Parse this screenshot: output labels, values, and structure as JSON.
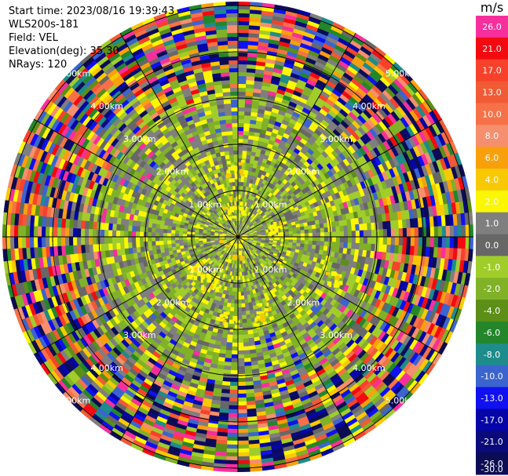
{
  "header": {
    "start_time": "Start time: 2023/08/16 19:39:43",
    "instrument": "WLS200s-181",
    "field": "Field: VEL",
    "elevation": "Elevation(deg): 35.30",
    "nrays": "NRays: 120"
  },
  "colorbar": {
    "unit": "m/s",
    "levels": [
      {
        "label": "26.0",
        "color": "#f72f9c"
      },
      {
        "label": "21.0",
        "color": "#f30a10"
      },
      {
        "label": "17.0",
        "color": "#f8412b"
      },
      {
        "label": "13.0",
        "color": "#f05a35"
      },
      {
        "label": "10.0",
        "color": "#f77148"
      },
      {
        "label": "8.0",
        "color": "#f58f6e"
      },
      {
        "label": "6.0",
        "color": "#f8a00c"
      },
      {
        "label": "4.0",
        "color": "#f8c902"
      },
      {
        "label": "2.0",
        "color": "#fbf603"
      },
      {
        "label": "1.0",
        "color": "#7f7f7f"
      },
      {
        "label": "0.0",
        "color": "#676767"
      },
      {
        "label": "-1.0",
        "color": "#a1cd2b"
      },
      {
        "label": "-2.0",
        "color": "#80b127"
      },
      {
        "label": "-4.0",
        "color": "#5c8f17"
      },
      {
        "label": "-6.0",
        "color": "#23862a"
      },
      {
        "label": "-8.0",
        "color": "#1d8c8b"
      },
      {
        "label": "-10.0",
        "color": "#3b64cf"
      },
      {
        "label": "-13.0",
        "color": "#1010f0"
      },
      {
        "label": "-17.0",
        "color": "#0505a8"
      },
      {
        "label": "-21.0",
        "color": "#0a0a7a"
      },
      {
        "label": "-26.0",
        "color": "#0c0c55"
      },
      {
        "label": "-30.0",
        "color": "#0c0c55"
      }
    ]
  },
  "chart_data": {
    "type": "heatmap",
    "subtype": "polar PPI scan",
    "field": "VEL",
    "units": "m/s",
    "nrays": 120,
    "range_rings_km": [
      1.0,
      2.0,
      3.0,
      4.0,
      5.0
    ],
    "ring_labels": [
      "1.00km",
      "2.00km",
      "3.00km",
      "4.00km",
      "5.00km"
    ],
    "spokes_deg": [
      0,
      30,
      60,
      90,
      120,
      150,
      180,
      210,
      240,
      270,
      300,
      330
    ],
    "color_scale": {
      "min": -30.0,
      "max": 26.0
    },
    "near_field": "mostly -1.0 to 1.0 m/s (grey/light green) with patches of 2.0 to 4.0 m/s",
    "far_field": "noisy values spanning the full scale"
  }
}
